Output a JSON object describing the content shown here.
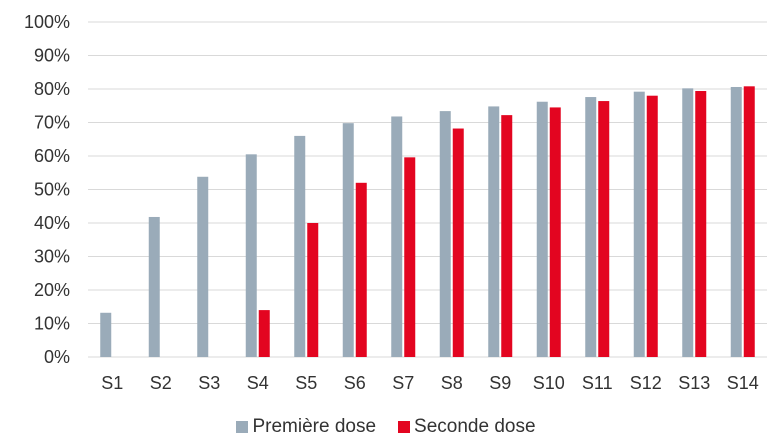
{
  "chart_data": {
    "type": "bar",
    "categories": [
      "S1",
      "S2",
      "S3",
      "S4",
      "S5",
      "S6",
      "S7",
      "S8",
      "S9",
      "S10",
      "S11",
      "S12",
      "S13",
      "S14"
    ],
    "series": [
      {
        "name": "Première dose",
        "color": "#9aabb9",
        "values": [
          13.2,
          41.8,
          53.8,
          60.5,
          66.0,
          69.8,
          71.8,
          73.4,
          74.8,
          76.2,
          77.6,
          79.2,
          80.2,
          80.6
        ]
      },
      {
        "name": "Seconde dose",
        "color": "#e30520",
        "values": [
          null,
          null,
          null,
          14.0,
          40.0,
          52.0,
          59.6,
          68.2,
          72.2,
          74.5,
          76.4,
          78.0,
          79.4,
          80.8
        ]
      }
    ],
    "y_ticks": [
      "0%",
      "10%",
      "20%",
      "30%",
      "40%",
      "50%",
      "60%",
      "70%",
      "80%",
      "90%",
      "100%"
    ],
    "ylim": [
      0,
      100
    ],
    "grid": true,
    "gridline_color": "#d9d9d9",
    "legend_position": "bottom"
  }
}
